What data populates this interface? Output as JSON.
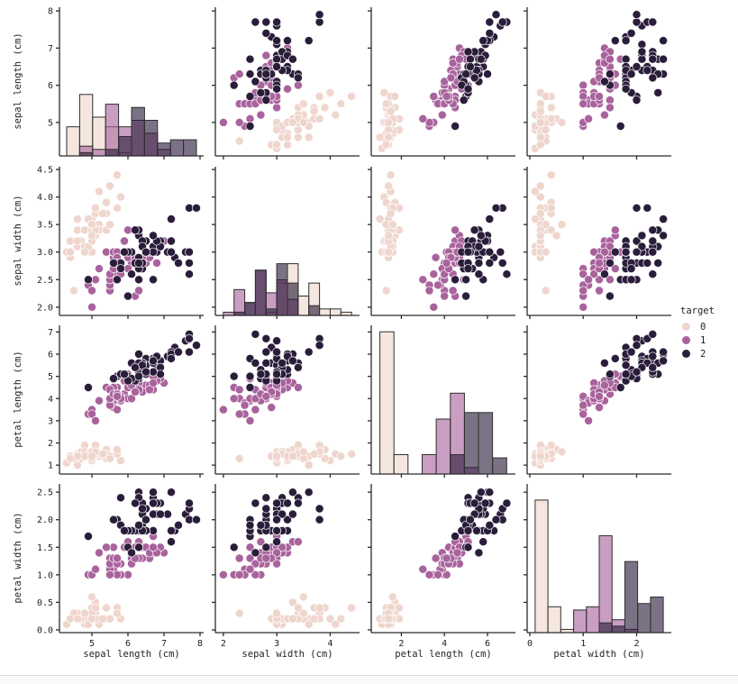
{
  "chart_data": {
    "type": "scatter",
    "subtype": "pairplot-scatter-matrix",
    "title": "",
    "hist_ymax": 46,
    "hue": {
      "title": "target",
      "classes": [
        {
          "label": "0",
          "color": "#efd6cd"
        },
        {
          "label": "1",
          "color": "#a9639c"
        },
        {
          "label": "2",
          "color": "#2a1d3a"
        }
      ]
    },
    "variables": [
      {
        "key": "sepal_length",
        "label": "sepal length (cm)",
        "lim": [
          4.1,
          8.1
        ],
        "xticks": [
          5,
          6,
          7,
          8
        ],
        "yticks": [
          5,
          6,
          7,
          8
        ],
        "ydec": 0,
        "bin_start": 4.3,
        "bin_width": 0.36,
        "bin_count": 10
      },
      {
        "key": "sepal_width",
        "label": "sepal width (cm)",
        "lim": [
          1.85,
          4.55
        ],
        "xticks": [
          2,
          3,
          4
        ],
        "yticks": [
          2,
          2.5,
          3,
          3.5,
          4,
          4.5
        ],
        "ydec": 1,
        "bin_start": 2.0,
        "bin_width": 0.2,
        "bin_count": 12
      },
      {
        "key": "petal_length",
        "label": "petal length (cm)",
        "lim": [
          0.6,
          7.3
        ],
        "xticks": [
          2,
          4,
          6
        ],
        "yticks": [
          1,
          2,
          3,
          4,
          5,
          6,
          7
        ],
        "ydec": 0,
        "bin_start": 1.0,
        "bin_width": 0.655,
        "bin_count": 9
      },
      {
        "key": "petal_width",
        "label": "petal width (cm)",
        "lim": [
          -0.05,
          2.65
        ],
        "xticks": [
          0,
          1,
          2
        ],
        "yticks": [
          0,
          0.5,
          1,
          1.5,
          2,
          2.5
        ],
        "ydec": 1,
        "bin_start": 0.1,
        "bin_width": 0.24,
        "bin_count": 10
      }
    ],
    "points": [
      [
        5.1,
        3.5,
        1.4,
        0.2,
        0
      ],
      [
        4.9,
        3.0,
        1.4,
        0.2,
        0
      ],
      [
        4.7,
        3.2,
        1.3,
        0.2,
        0
      ],
      [
        4.6,
        3.1,
        1.5,
        0.2,
        0
      ],
      [
        5.0,
        3.6,
        1.4,
        0.2,
        0
      ],
      [
        5.4,
        3.9,
        1.7,
        0.4,
        0
      ],
      [
        4.6,
        3.4,
        1.4,
        0.3,
        0
      ],
      [
        5.0,
        3.4,
        1.5,
        0.2,
        0
      ],
      [
        4.4,
        2.9,
        1.4,
        0.2,
        0
      ],
      [
        4.9,
        3.1,
        1.5,
        0.1,
        0
      ],
      [
        5.4,
        3.7,
        1.5,
        0.2,
        0
      ],
      [
        4.8,
        3.4,
        1.6,
        0.2,
        0
      ],
      [
        4.8,
        3.0,
        1.4,
        0.1,
        0
      ],
      [
        4.3,
        3.0,
        1.1,
        0.1,
        0
      ],
      [
        5.8,
        4.0,
        1.2,
        0.2,
        0
      ],
      [
        5.7,
        4.4,
        1.5,
        0.4,
        0
      ],
      [
        5.4,
        3.9,
        1.3,
        0.4,
        0
      ],
      [
        5.1,
        3.5,
        1.4,
        0.3,
        0
      ],
      [
        5.7,
        3.8,
        1.7,
        0.3,
        0
      ],
      [
        5.1,
        3.8,
        1.5,
        0.3,
        0
      ],
      [
        5.4,
        3.4,
        1.7,
        0.2,
        0
      ],
      [
        5.1,
        3.7,
        1.5,
        0.4,
        0
      ],
      [
        4.6,
        3.6,
        1.0,
        0.2,
        0
      ],
      [
        5.1,
        3.3,
        1.7,
        0.5,
        0
      ],
      [
        4.8,
        3.4,
        1.9,
        0.2,
        0
      ],
      [
        5.0,
        3.0,
        1.6,
        0.2,
        0
      ],
      [
        5.0,
        3.4,
        1.6,
        0.4,
        0
      ],
      [
        5.2,
        3.5,
        1.5,
        0.2,
        0
      ],
      [
        5.2,
        3.4,
        1.4,
        0.2,
        0
      ],
      [
        4.7,
        3.2,
        1.6,
        0.2,
        0
      ],
      [
        4.8,
        3.1,
        1.6,
        0.2,
        0
      ],
      [
        5.4,
        3.4,
        1.5,
        0.4,
        0
      ],
      [
        5.2,
        4.1,
        1.5,
        0.1,
        0
      ],
      [
        5.5,
        4.2,
        1.4,
        0.2,
        0
      ],
      [
        4.9,
        3.1,
        1.5,
        0.2,
        0
      ],
      [
        5.0,
        3.2,
        1.2,
        0.2,
        0
      ],
      [
        5.5,
        3.5,
        1.3,
        0.2,
        0
      ],
      [
        4.9,
        3.6,
        1.4,
        0.1,
        0
      ],
      [
        4.4,
        3.0,
        1.3,
        0.2,
        0
      ],
      [
        5.1,
        3.4,
        1.5,
        0.2,
        0
      ],
      [
        5.0,
        3.5,
        1.3,
        0.3,
        0
      ],
      [
        4.5,
        2.3,
        1.3,
        0.3,
        0
      ],
      [
        4.4,
        3.2,
        1.3,
        0.2,
        0
      ],
      [
        5.0,
        3.5,
        1.6,
        0.6,
        0
      ],
      [
        5.1,
        3.8,
        1.9,
        0.4,
        0
      ],
      [
        4.8,
        3.0,
        1.4,
        0.3,
        0
      ],
      [
        5.1,
        3.8,
        1.6,
        0.2,
        0
      ],
      [
        4.6,
        3.2,
        1.4,
        0.2,
        0
      ],
      [
        5.3,
        3.7,
        1.5,
        0.2,
        0
      ],
      [
        5.0,
        3.3,
        1.4,
        0.2,
        0
      ],
      [
        7.0,
        3.2,
        4.7,
        1.4,
        1
      ],
      [
        6.4,
        3.2,
        4.5,
        1.5,
        1
      ],
      [
        6.9,
        3.1,
        4.9,
        1.5,
        1
      ],
      [
        5.5,
        2.3,
        4.0,
        1.3,
        1
      ],
      [
        6.5,
        2.8,
        4.6,
        1.5,
        1
      ],
      [
        5.7,
        2.8,
        4.5,
        1.3,
        1
      ],
      [
        6.3,
        3.3,
        4.7,
        1.6,
        1
      ],
      [
        4.9,
        2.4,
        3.3,
        1.0,
        1
      ],
      [
        6.6,
        2.9,
        4.6,
        1.3,
        1
      ],
      [
        5.2,
        2.7,
        3.9,
        1.4,
        1
      ],
      [
        5.0,
        2.0,
        3.5,
        1.0,
        1
      ],
      [
        5.9,
        3.0,
        4.2,
        1.5,
        1
      ],
      [
        6.0,
        2.2,
        4.0,
        1.0,
        1
      ],
      [
        6.1,
        2.9,
        4.7,
        1.4,
        1
      ],
      [
        5.6,
        2.9,
        3.6,
        1.3,
        1
      ],
      [
        6.7,
        3.1,
        4.4,
        1.4,
        1
      ],
      [
        5.6,
        3.0,
        4.5,
        1.5,
        1
      ],
      [
        5.8,
        2.7,
        4.1,
        1.0,
        1
      ],
      [
        6.2,
        2.2,
        4.5,
        1.5,
        1
      ],
      [
        5.6,
        2.5,
        3.9,
        1.1,
        1
      ],
      [
        5.9,
        3.2,
        4.8,
        1.8,
        1
      ],
      [
        6.1,
        2.8,
        4.0,
        1.3,
        1
      ],
      [
        6.3,
        2.5,
        4.9,
        1.5,
        1
      ],
      [
        6.1,
        2.8,
        4.7,
        1.2,
        1
      ],
      [
        6.4,
        2.9,
        4.3,
        1.3,
        1
      ],
      [
        6.6,
        3.0,
        4.4,
        1.4,
        1
      ],
      [
        6.8,
        2.8,
        4.8,
        1.4,
        1
      ],
      [
        6.7,
        3.0,
        5.0,
        1.7,
        1
      ],
      [
        6.0,
        2.9,
        4.5,
        1.5,
        1
      ],
      [
        5.7,
        2.6,
        3.5,
        1.0,
        1
      ],
      [
        5.5,
        2.4,
        3.8,
        1.1,
        1
      ],
      [
        5.5,
        2.4,
        3.7,
        1.0,
        1
      ],
      [
        5.8,
        2.7,
        3.9,
        1.2,
        1
      ],
      [
        6.0,
        2.7,
        5.1,
        1.6,
        1
      ],
      [
        5.4,
        3.0,
        4.5,
        1.5,
        1
      ],
      [
        6.0,
        3.4,
        4.5,
        1.6,
        1
      ],
      [
        6.7,
        3.1,
        4.7,
        1.5,
        1
      ],
      [
        6.3,
        2.3,
        4.4,
        1.3,
        1
      ],
      [
        5.6,
        3.0,
        4.1,
        1.3,
        1
      ],
      [
        5.5,
        2.5,
        4.0,
        1.3,
        1
      ],
      [
        5.5,
        2.6,
        4.4,
        1.2,
        1
      ],
      [
        6.1,
        3.0,
        4.6,
        1.4,
        1
      ],
      [
        5.8,
        2.6,
        4.0,
        1.2,
        1
      ],
      [
        5.0,
        2.3,
        3.3,
        1.0,
        1
      ],
      [
        5.6,
        2.7,
        4.2,
        1.3,
        1
      ],
      [
        5.7,
        3.0,
        4.2,
        1.2,
        1
      ],
      [
        5.7,
        2.9,
        4.2,
        1.3,
        1
      ],
      [
        6.2,
        2.9,
        4.3,
        1.3,
        1
      ],
      [
        5.1,
        2.5,
        3.0,
        1.1,
        1
      ],
      [
        5.7,
        2.8,
        4.1,
        1.3,
        1
      ],
      [
        6.3,
        3.3,
        6.0,
        2.5,
        2
      ],
      [
        5.8,
        2.7,
        5.1,
        1.9,
        2
      ],
      [
        7.1,
        3.0,
        5.9,
        2.1,
        2
      ],
      [
        6.3,
        2.9,
        5.6,
        1.8,
        2
      ],
      [
        6.5,
        3.0,
        5.8,
        2.2,
        2
      ],
      [
        7.6,
        3.0,
        6.6,
        2.1,
        2
      ],
      [
        4.9,
        2.5,
        4.5,
        1.7,
        2
      ],
      [
        7.3,
        2.9,
        6.3,
        1.8,
        2
      ],
      [
        6.7,
        2.5,
        5.8,
        1.8,
        2
      ],
      [
        7.2,
        3.6,
        6.1,
        2.5,
        2
      ],
      [
        6.5,
        3.2,
        5.1,
        2.0,
        2
      ],
      [
        6.4,
        2.7,
        5.3,
        1.9,
        2
      ],
      [
        6.8,
        3.0,
        5.5,
        2.1,
        2
      ],
      [
        5.7,
        2.5,
        5.0,
        2.0,
        2
      ],
      [
        5.8,
        2.8,
        5.1,
        2.4,
        2
      ],
      [
        6.4,
        3.2,
        5.3,
        2.3,
        2
      ],
      [
        6.5,
        3.0,
        5.5,
        1.8,
        2
      ],
      [
        7.7,
        3.8,
        6.7,
        2.2,
        2
      ],
      [
        7.7,
        2.6,
        6.9,
        2.3,
        2
      ],
      [
        6.0,
        2.2,
        5.0,
        1.5,
        2
      ],
      [
        6.9,
        3.2,
        5.7,
        2.3,
        2
      ],
      [
        5.6,
        2.8,
        4.9,
        2.0,
        2
      ],
      [
        7.7,
        2.8,
        6.7,
        2.0,
        2
      ],
      [
        6.3,
        2.7,
        4.9,
        1.8,
        2
      ],
      [
        6.7,
        3.3,
        5.7,
        2.1,
        2
      ],
      [
        7.2,
        3.2,
        6.0,
        1.8,
        2
      ],
      [
        6.2,
        2.8,
        4.8,
        1.8,
        2
      ],
      [
        6.1,
        3.0,
        4.9,
        1.8,
        2
      ],
      [
        6.4,
        2.8,
        5.6,
        2.1,
        2
      ],
      [
        7.2,
        3.0,
        5.8,
        1.6,
        2
      ],
      [
        7.4,
        2.8,
        6.1,
        1.9,
        2
      ],
      [
        7.9,
        3.8,
        6.4,
        2.0,
        2
      ],
      [
        6.4,
        2.8,
        5.6,
        2.2,
        2
      ],
      [
        6.3,
        2.8,
        5.1,
        1.5,
        2
      ],
      [
        6.1,
        2.6,
        5.6,
        1.4,
        2
      ],
      [
        7.7,
        3.0,
        6.1,
        2.3,
        2
      ],
      [
        6.3,
        3.4,
        5.6,
        2.4,
        2
      ],
      [
        6.4,
        3.1,
        5.5,
        1.8,
        2
      ],
      [
        6.0,
        3.0,
        4.8,
        1.8,
        2
      ],
      [
        6.9,
        3.1,
        5.4,
        2.1,
        2
      ],
      [
        6.7,
        3.1,
        5.6,
        2.4,
        2
      ],
      [
        6.9,
        3.1,
        5.1,
        2.3,
        2
      ],
      [
        5.8,
        2.7,
        5.1,
        1.9,
        2
      ],
      [
        6.8,
        3.2,
        5.9,
        2.3,
        2
      ],
      [
        6.7,
        3.3,
        5.7,
        2.5,
        2
      ],
      [
        6.7,
        3.0,
        5.2,
        2.3,
        2
      ],
      [
        6.3,
        2.5,
        5.0,
        1.9,
        2
      ],
      [
        6.5,
        3.0,
        5.2,
        2.0,
        2
      ],
      [
        6.2,
        3.4,
        5.4,
        2.3,
        2
      ],
      [
        5.9,
        3.0,
        5.1,
        1.8,
        2
      ]
    ]
  }
}
